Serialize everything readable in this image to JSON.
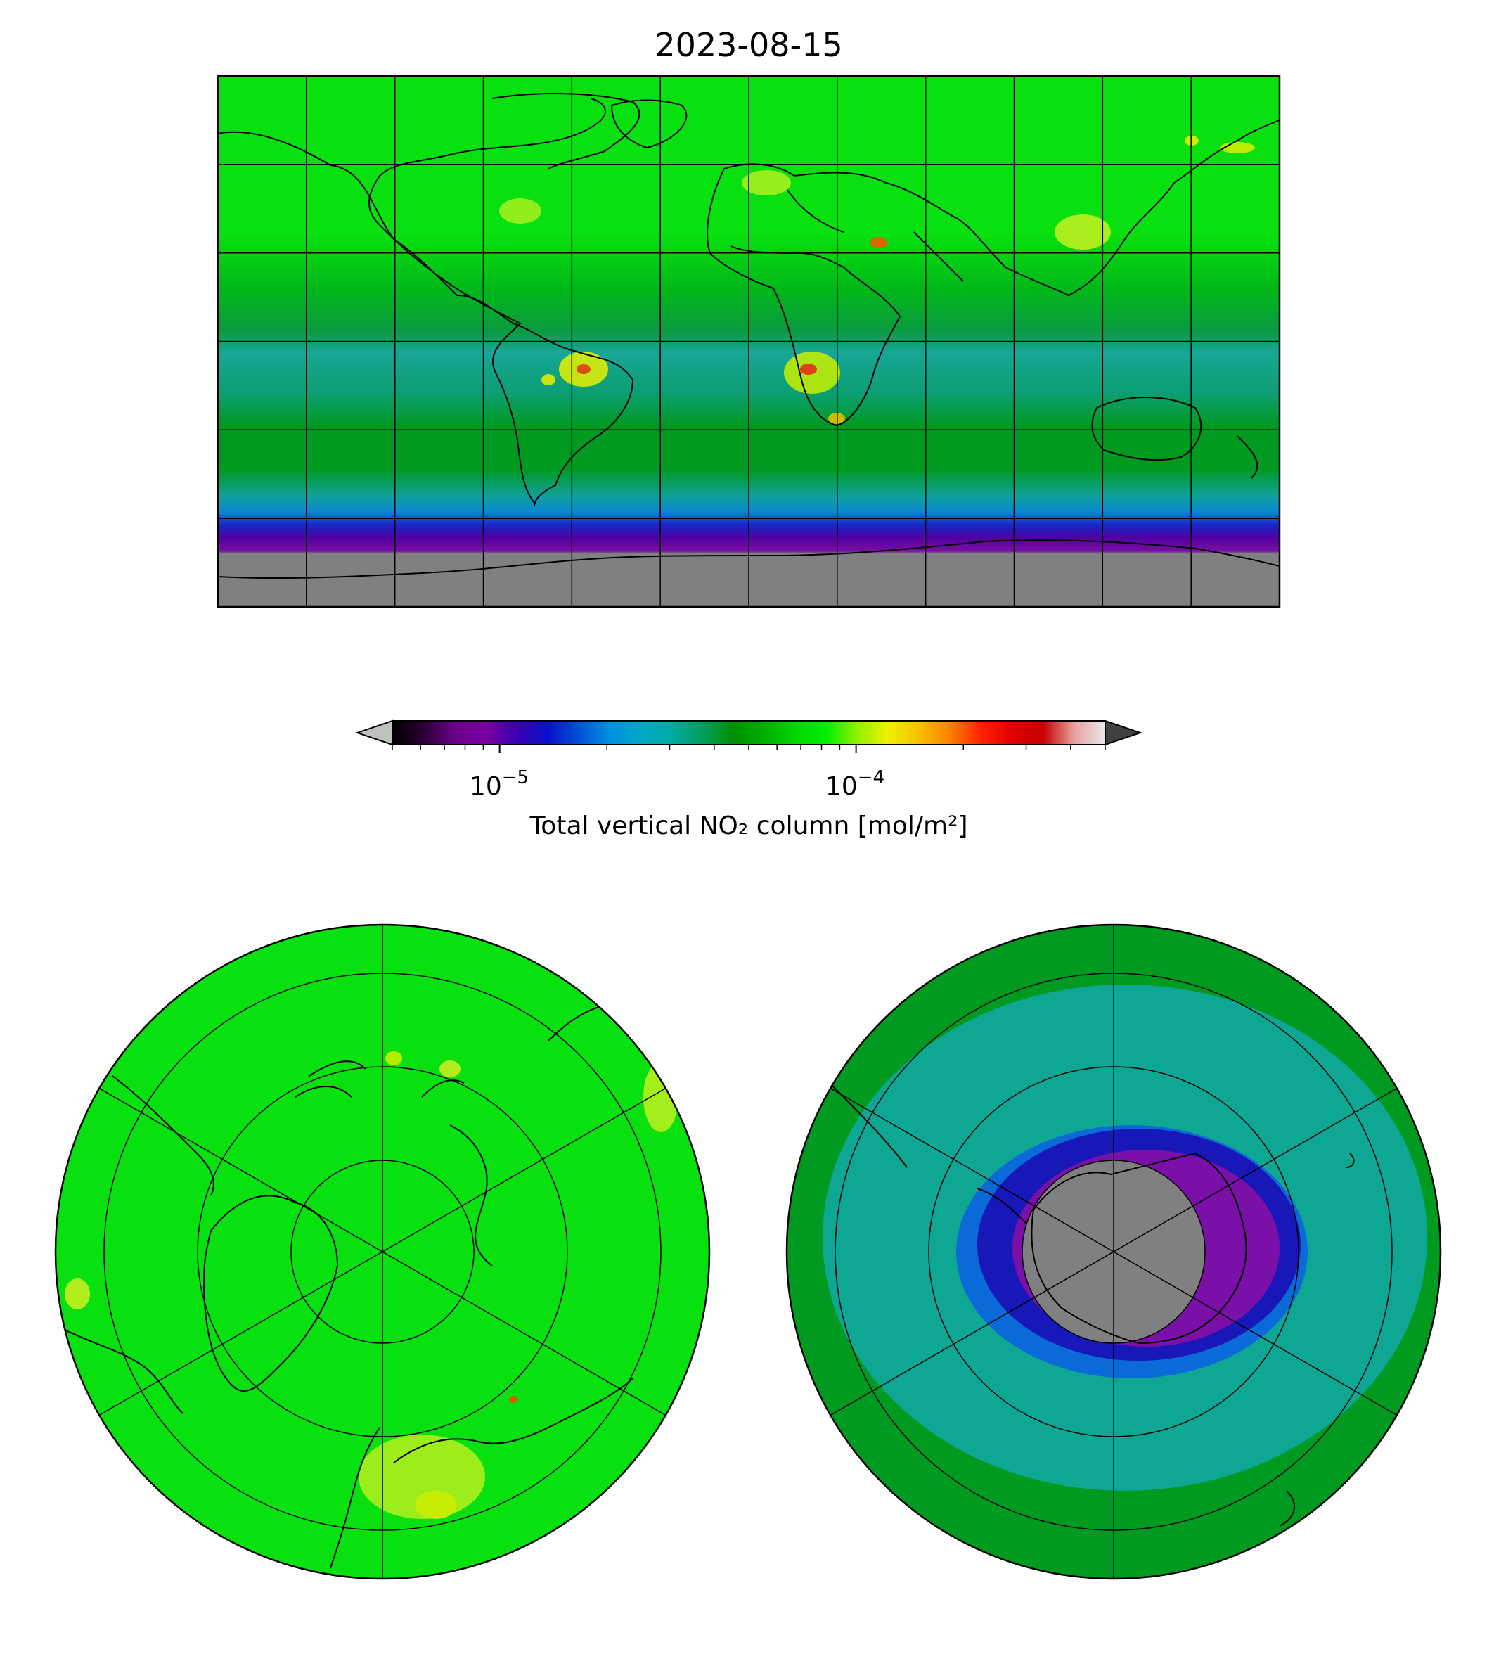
{
  "figure": {
    "title": "2023-08-15"
  },
  "colorbar": {
    "label": "Total vertical NO₂ column [mol/m²]",
    "scale": "log",
    "range": [
      5e-06,
      0.0005
    ],
    "ticks": [
      {
        "value": 1e-05,
        "base": "10",
        "exponent": "−5"
      },
      {
        "value": 0.0001,
        "base": "10",
        "exponent": "−4"
      }
    ],
    "extend": "both",
    "under_color": "#c0c0c0",
    "over_color": "#404040",
    "stops": [
      "#000000",
      "#2a0033",
      "#6a0088",
      "#7a00a0",
      "#3a00b4",
      "#0a10c8",
      "#0050d8",
      "#0090e0",
      "#00a8c8",
      "#00aaa0",
      "#00a060",
      "#008f00",
      "#00b000",
      "#00d600",
      "#00f000",
      "#90f000",
      "#f0f000",
      "#f8c000",
      "#fa8000",
      "#ff2000",
      "#e00000",
      "#c80000",
      "#e8a0a0",
      "#e8e8e8"
    ]
  },
  "panels": [
    {
      "name": "global-map",
      "projection": "equirectangular",
      "gridlines": "30°"
    },
    {
      "name": "arctic-map",
      "projection": "north-polar-stereographic"
    },
    {
      "name": "antarctic-map",
      "projection": "south-polar-stereographic"
    }
  ],
  "colors": {
    "no_data": "#808080",
    "background_green": "#00e000",
    "ocean_dark_green": "#009800",
    "tropical_teal": "#10a8a0",
    "antarctic_blue": "#0020c0",
    "antarctic_purple": "#8010a8"
  }
}
